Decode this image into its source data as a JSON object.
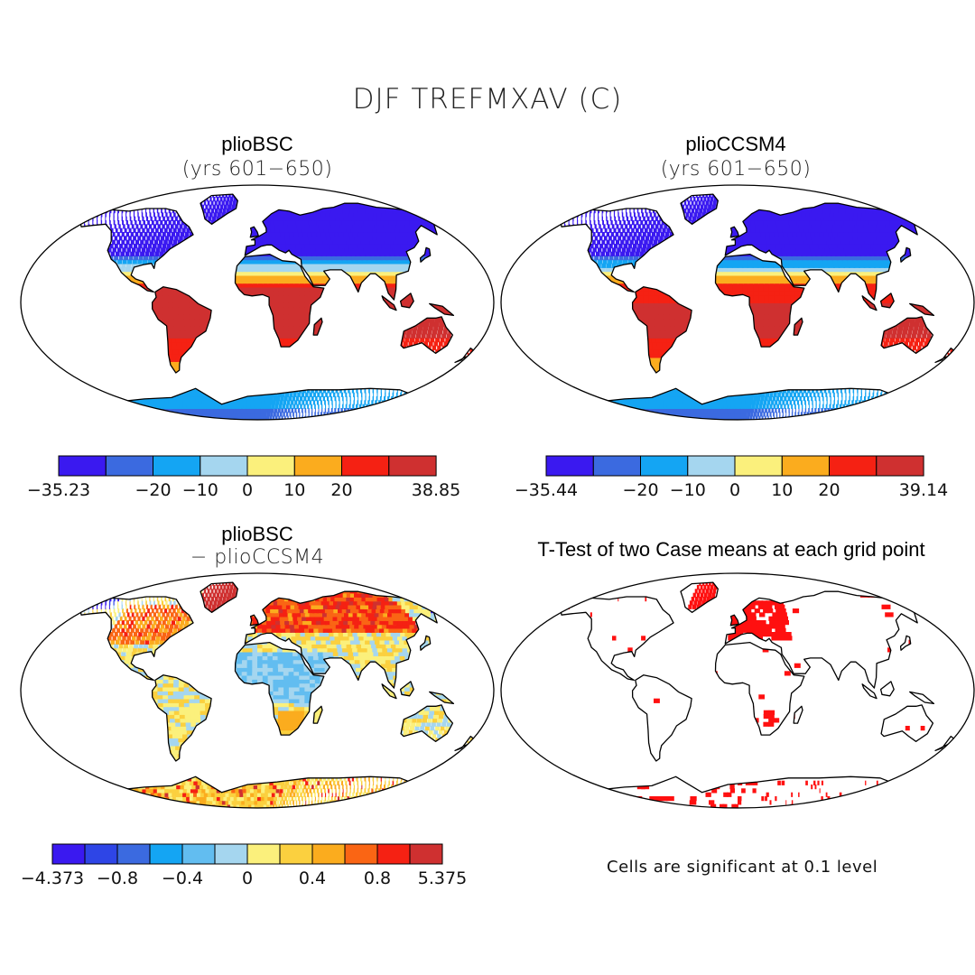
{
  "title": "DJF TREFMXAV (C)",
  "colors": {
    "sig": "#ff1010",
    "seq8": [
      "#3a19f0",
      "#3b6ae0",
      "#14a5f3",
      "#a5d6ef",
      "#fbf07c",
      "#fbac1e",
      "#f52113",
      "#cf3030"
    ],
    "seq12": [
      "#3a19f0",
      "#2e45e6",
      "#3b6ae0",
      "#14a5f3",
      "#62bdf0",
      "#a5d6ef",
      "#fbf07c",
      "#fbd03f",
      "#fbac1e",
      "#fa6514",
      "#f52113",
      "#cf3030"
    ]
  },
  "panels": [
    {
      "id": "top-left",
      "title": "plioBSC",
      "subtitle": "(yrs 601−650)",
      "colorbar": {
        "labels": [
          "−35.23",
          "−20",
          "−10",
          "0",
          "10",
          "20",
          "38.85"
        ],
        "boundaries": [
          -35.23,
          -30,
          -20,
          -10,
          0,
          10,
          20,
          30,
          38.85
        ]
      }
    },
    {
      "id": "top-right",
      "title": "plioCCSM4",
      "subtitle": "(yrs 601−650)",
      "colorbar": {
        "labels": [
          "−35.44",
          "−20",
          "−10",
          "0",
          "10",
          "20",
          "39.14"
        ],
        "boundaries": [
          -35.44,
          -30,
          -20,
          -10,
          0,
          10,
          20,
          30,
          39.14
        ]
      }
    },
    {
      "id": "bottom-left",
      "title": "plioBSC",
      "subtitle": "− plioCCSM4",
      "colorbar": {
        "labels": [
          "−4.373",
          "−0.8",
          "−0.4",
          "0",
          "0.4",
          "0.8",
          "5.375"
        ],
        "boundaries": [
          -4.373,
          -1,
          -0.8,
          -0.6,
          -0.4,
          -0.2,
          0,
          0.2,
          0.4,
          0.6,
          0.8,
          1,
          5.375
        ]
      }
    },
    {
      "id": "bottom-right",
      "title": "T-Test of two Case means at each grid point",
      "subtitle": "",
      "footnote": "Cells are significant at 0.1 level"
    }
  ]
}
